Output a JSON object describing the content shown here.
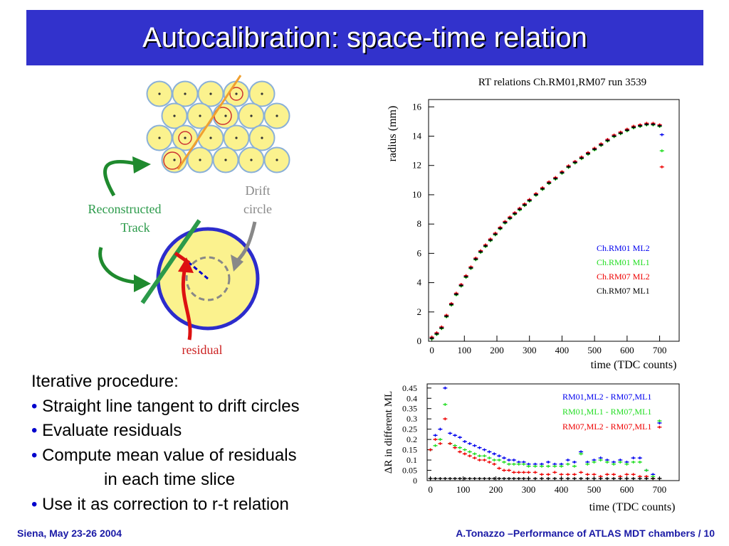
{
  "slide": {
    "title": "Autocalibration: space-time relation",
    "footer_left": "Siena, May 23-26 2004",
    "footer_right": "A.Tonazzo –Performance of ATLAS MDT chambers /  10"
  },
  "diagram": {
    "label_track": [
      "Reconstructed",
      "Track"
    ],
    "label_drift": [
      "Drift",
      "circle"
    ],
    "label_residual": "residual"
  },
  "bullets": {
    "heading": "Iterative procedure:",
    "items": [
      "Straight line tangent to drift circles",
      "Evaluate residuals",
      "Compute mean value of residuals"
    ],
    "continuation": "in each time slice",
    "last_item": "Use it as correction to r-t relation"
  },
  "colors": {
    "title_bg": "#3232cc",
    "footer_text": "#1a1aa6",
    "bullet_dot": "#0000cc"
  },
  "chart_data": [
    {
      "type": "scatter",
      "title": "RT relations Ch.RM01,RM07 run 3539",
      "xlabel": "time (TDC counts)",
      "ylabel": "radius (mm)",
      "xlim": [
        -10,
        760
      ],
      "ylim": [
        0,
        16.5
      ],
      "xticks": [
        0,
        100,
        200,
        300,
        400,
        500,
        600,
        700
      ],
      "yticks": [
        0,
        2,
        4,
        6,
        8,
        10,
        12,
        14,
        16
      ],
      "legend_position": "bottom-right",
      "series": [
        {
          "name": "Ch.RM01 ML2",
          "color": "#0000ee"
        },
        {
          "name": "Ch.RM01 ML1",
          "color": "#22dd22"
        },
        {
          "name": "Ch.RM07 ML2",
          "color": "#ee0000"
        },
        {
          "name": "Ch.RM07 ML1",
          "color": "#000000"
        }
      ],
      "x": [
        0,
        15,
        30,
        45,
        60,
        75,
        90,
        105,
        120,
        135,
        150,
        165,
        180,
        195,
        210,
        225,
        240,
        255,
        270,
        285,
        300,
        320,
        340,
        360,
        380,
        400,
        420,
        440,
        460,
        480,
        500,
        520,
        540,
        560,
        580,
        600,
        620,
        640,
        660,
        680,
        700
      ],
      "y": [
        0.2,
        0.5,
        0.9,
        1.7,
        2.5,
        3.2,
        3.8,
        4.4,
        5.0,
        5.6,
        6.1,
        6.5,
        6.9,
        7.3,
        7.7,
        8.1,
        8.4,
        8.7,
        9.0,
        9.3,
        9.6,
        10.0,
        10.4,
        10.8,
        11.1,
        11.5,
        11.9,
        12.2,
        12.5,
        12.8,
        13.1,
        13.4,
        13.7,
        14.0,
        14.2,
        14.4,
        14.6,
        14.7,
        14.8,
        14.8,
        14.7
      ],
      "endpoints": [
        {
          "series": "Ch.RM01 ML2",
          "x": 707,
          "y": 14.1
        },
        {
          "series": "Ch.RM01 ML1",
          "x": 707,
          "y": 13.0
        },
        {
          "series": "Ch.RM07 ML2",
          "x": 707,
          "y": 11.9
        }
      ]
    },
    {
      "type": "scatter",
      "xlabel": "time (TDC counts)",
      "ylabel": "ΔR in different ML",
      "xlim": [
        -10,
        760
      ],
      "ylim": [
        0,
        0.47
      ],
      "xticks": [
        0,
        100,
        200,
        300,
        400,
        500,
        600,
        700
      ],
      "ytick_labels": [
        "0",
        "0.05",
        "0.1",
        "0.15",
        "0.2",
        "0.25",
        "0.3",
        "0.35",
        "0.4",
        "0.45"
      ],
      "legend_position": "top-right",
      "x": [
        0,
        15,
        30,
        45,
        60,
        75,
        90,
        105,
        120,
        135,
        150,
        165,
        180,
        195,
        210,
        225,
        240,
        255,
        270,
        285,
        300,
        320,
        340,
        360,
        380,
        400,
        420,
        440,
        460,
        480,
        500,
        520,
        540,
        560,
        580,
        600,
        620,
        640,
        660,
        680,
        700
      ],
      "series": [
        {
          "name": "RM01,ML2 - RM07,ML1",
          "color": "#0000ee",
          "values": [
            0.15,
            0.22,
            0.25,
            0.45,
            0.23,
            0.22,
            0.21,
            0.19,
            0.18,
            0.17,
            0.16,
            0.15,
            0.14,
            0.13,
            0.12,
            0.11,
            0.1,
            0.1,
            0.09,
            0.09,
            0.08,
            0.08,
            0.08,
            0.09,
            0.08,
            0.08,
            0.1,
            0.09,
            0.14,
            0.09,
            0.1,
            0.11,
            0.1,
            0.09,
            0.1,
            0.09,
            0.11,
            0.11,
            0.05,
            0.03,
            0.28
          ]
        },
        {
          "name": "RM01,ML1 - RM07,ML1",
          "color": "#22dd22",
          "values": [
            0.15,
            0.17,
            0.2,
            0.37,
            0.18,
            0.17,
            0.16,
            0.15,
            0.14,
            0.13,
            0.12,
            0.12,
            0.11,
            0.1,
            0.1,
            0.09,
            0.08,
            0.08,
            0.08,
            0.08,
            0.07,
            0.07,
            0.07,
            0.07,
            0.07,
            0.07,
            0.08,
            0.07,
            0.13,
            0.08,
            0.09,
            0.1,
            0.09,
            0.08,
            0.09,
            0.08,
            0.09,
            0.09,
            0.05,
            0.02,
            0.29
          ]
        },
        {
          "name": "RM07,ML2 - RM07,ML1",
          "color": "#ee0000",
          "values": [
            0.15,
            0.2,
            0.18,
            0.3,
            0.18,
            0.16,
            0.14,
            0.13,
            0.12,
            0.11,
            0.1,
            0.1,
            0.09,
            0.08,
            0.06,
            0.05,
            0.05,
            0.04,
            0.04,
            0.04,
            0.04,
            0.04,
            0.03,
            0.03,
            0.04,
            0.03,
            0.03,
            0.03,
            0.04,
            0.03,
            0.03,
            0.02,
            0.03,
            0.03,
            0.02,
            0.03,
            0.03,
            0.02,
            0.02,
            0.01,
            0.26
          ]
        },
        {
          "name": "",
          "color": "#000000",
          "values": [
            0.01,
            0.01,
            0.01,
            0.01,
            0.01,
            0.01,
            0.01,
            0.01,
            0.01,
            0.01,
            0.01,
            0.01,
            0.01,
            0.01,
            0.01,
            0.01,
            0.01,
            0.01,
            0.01,
            0.01,
            0.01,
            0.01,
            0.01,
            0.01,
            0.01,
            0.01,
            0.01,
            0.01,
            0.01,
            0.01,
            0.01,
            0.01,
            0.01,
            0.01,
            0.01,
            0.01,
            0.01,
            0.01,
            0.01,
            0.01,
            0.01
          ]
        }
      ]
    }
  ]
}
